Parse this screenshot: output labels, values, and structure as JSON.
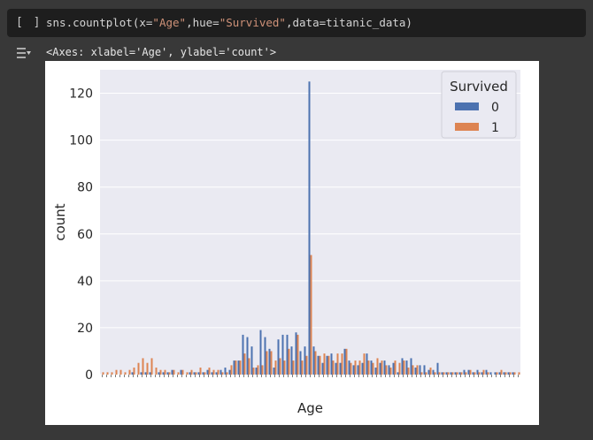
{
  "cell": {
    "run_indicator": "[ ]",
    "code_prefix": "sns.countplot(x=",
    "code_str1": "\"Age\"",
    "code_mid1": ",hue=",
    "code_str2": "\"Survived\"",
    "code_suffix": ",data=titanic_data)"
  },
  "output": {
    "toggle_icon": "output-collapse-icon",
    "repr_text": "<Axes: xlabel='Age', ylabel='count'>"
  },
  "chart_data": {
    "type": "bar",
    "xlabel": "Age",
    "ylabel": "count",
    "ylim": [
      0,
      130
    ],
    "yticks": [
      0,
      20,
      40,
      60,
      80,
      100,
      120
    ],
    "grid": true,
    "legend_placement": "top-right",
    "legend_title": "Survived",
    "colors": {
      "plot_bg": "#eaeaf2",
      "grid": "#ffffff"
    },
    "series": [
      {
        "name": "0",
        "color": "#4c72b0",
        "values": [
          0,
          0,
          0,
          0,
          0,
          0,
          0,
          1,
          0,
          1,
          1,
          1,
          0,
          1,
          1,
          1,
          2,
          0,
          2,
          0,
          1,
          1,
          1,
          1,
          2,
          1,
          1,
          2,
          3,
          2,
          6,
          6,
          17,
          16,
          12,
          3,
          19,
          16,
          11,
          3,
          15,
          17,
          17,
          12,
          18,
          10,
          12,
          125,
          12,
          8,
          5,
          8,
          9,
          5,
          5,
          11,
          6,
          4,
          4,
          5,
          9,
          6,
          3,
          5,
          6,
          4,
          5,
          1,
          7,
          6,
          7,
          3,
          4,
          4,
          2,
          2,
          5,
          1,
          1,
          1,
          1,
          1,
          2,
          2,
          1,
          2,
          1,
          2,
          1,
          1,
          1,
          1,
          1,
          1,
          0
        ]
      },
      {
        "name": "1",
        "color": "#dd8452",
        "values": [
          1,
          1,
          1,
          2,
          2,
          1,
          2,
          3,
          5,
          7,
          5,
          7,
          3,
          2,
          2,
          1,
          2,
          1,
          2,
          1,
          2,
          1,
          3,
          1,
          3,
          2,
          2,
          1,
          1,
          4,
          6,
          6,
          9,
          7,
          3,
          4,
          4,
          10,
          10,
          6,
          7,
          6,
          11,
          6,
          17,
          6,
          8,
          51,
          10,
          8,
          9,
          8,
          6,
          9,
          9,
          11,
          5,
          6,
          6,
          9,
          6,
          5,
          7,
          6,
          4,
          3,
          6,
          5,
          6,
          3,
          4,
          4,
          1,
          1,
          3,
          1,
          1,
          1,
          1,
          1,
          1,
          1,
          1,
          2,
          1,
          1,
          2,
          1,
          0,
          1,
          2,
          1,
          1,
          1,
          1
        ]
      }
    ]
  }
}
